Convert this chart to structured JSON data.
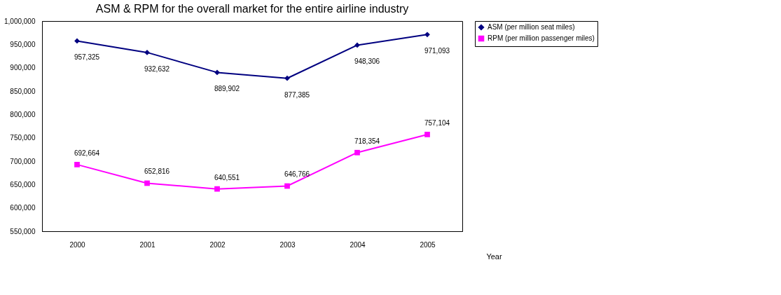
{
  "chart_data": {
    "type": "line",
    "title": "ASM & RPM for the overall market for the entire airline industry",
    "xlabel": "Year",
    "categories": [
      "2000",
      "2001",
      "2002",
      "2003",
      "2004",
      "2005"
    ],
    "series": [
      {
        "name": "ASM (per million seat miles)",
        "color": "#000080",
        "marker": "diamond",
        "line_style": "solid",
        "values": [
          957325,
          932632,
          889902,
          877385,
          948306,
          971093
        ],
        "value_labels": [
          "957,325",
          "932,632",
          "889,902",
          "877,385",
          "948,306",
          "971,093"
        ]
      },
      {
        "name": "RPM (per million passenger miles)",
        "color": "#ff00ff",
        "marker": "square",
        "line_style": "solid",
        "values": [
          692664,
          652816,
          640551,
          646766,
          718354,
          757104
        ],
        "value_labels": [
          "692,664",
          "652,816",
          "640,551",
          "646,766",
          "718,354",
          "757,104"
        ]
      }
    ],
    "ylim": [
      550000,
      1000000
    ],
    "yticks": [
      {
        "value": 550000,
        "label": "550,000"
      },
      {
        "value": 600000,
        "label": "600,000"
      },
      {
        "value": 650000,
        "label": "650,000"
      },
      {
        "value": 700000,
        "label": "700,000"
      },
      {
        "value": 750000,
        "label": "750,000"
      },
      {
        "value": 800000,
        "label": "800,000"
      },
      {
        "value": 850000,
        "label": "850,000"
      },
      {
        "value": 900000,
        "label": "900,000"
      },
      {
        "value": 950000,
        "label": "950,000"
      },
      {
        "value": 1000000,
        "label": "1,000,000"
      }
    ],
    "data_labels": true,
    "grid": false,
    "legend": "right"
  }
}
